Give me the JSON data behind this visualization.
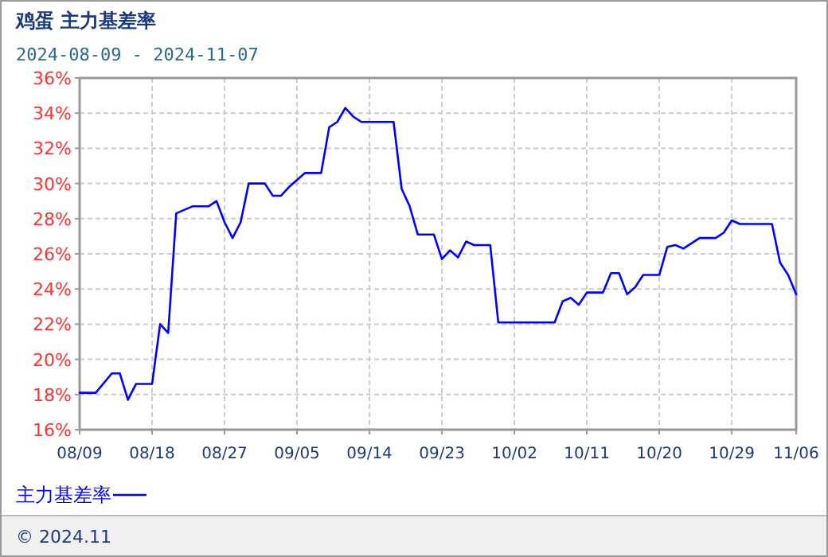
{
  "chart_data": {
    "type": "line",
    "title": "鸡蛋 主力基差率",
    "subtitle": "2024-08-09 - 2024-11-07",
    "x": [
      "--08-09",
      "--08-11",
      "--08-13",
      "--08-14",
      "--08-15",
      "--08-16",
      "--08-18",
      "--08-19",
      "--08-20",
      "--08-21",
      "--08-23",
      "--08-25",
      "--08-26",
      "--08-27",
      "--08-28",
      "--08-29",
      "--08-30",
      "--09-01",
      "--09-02",
      "--09-03",
      "--09-04",
      "--09-06",
      "--09-08",
      "--09-09",
      "--09-10",
      "--09-11",
      "--09-12",
      "--09-13",
      "--09-17",
      "--09-18",
      "--09-19",
      "--09-20",
      "--09-22",
      "--09-23",
      "--09-24",
      "--09-25",
      "--09-26",
      "--09-27",
      "--09-29",
      "--09-30",
      "--10-07",
      "--10-08",
      "--10-09",
      "--10-10",
      "--10-11",
      "--10-13",
      "--10-14",
      "--10-15",
      "--10-16",
      "--10-17",
      "--10-18",
      "--10-20",
      "--10-21",
      "--10-22",
      "--10-23",
      "--10-25",
      "--10-27",
      "--10-28",
      "--10-29",
      "--10-30",
      "--11-03",
      "--11-04",
      "--11-05",
      "--11-06"
    ],
    "series": [
      {
        "name": "主力基差率",
        "color": "#0000ff",
        "values": [
          18.1,
          18.1,
          19.2,
          19.2,
          17.7,
          18.6,
          18.6,
          22.0,
          21.5,
          28.3,
          28.7,
          28.7,
          29.0,
          27.8,
          26.9,
          27.8,
          30.0,
          30.0,
          29.3,
          29.3,
          29.8,
          30.6,
          30.6,
          33.2,
          33.5,
          34.3,
          33.8,
          33.5,
          33.5,
          29.7,
          28.7,
          27.1,
          27.1,
          25.7,
          26.2,
          25.8,
          26.7,
          26.5,
          26.5,
          22.1,
          22.1,
          23.3,
          23.5,
          23.1,
          23.8,
          23.8,
          24.9,
          24.9,
          23.7,
          24.1,
          24.8,
          24.8,
          26.4,
          26.5,
          26.3,
          26.9,
          26.9,
          27.2,
          27.9,
          27.7,
          27.7,
          25.5,
          24.8,
          23.7
        ]
      }
    ],
    "xlim": [
      "--08-09",
      "--11-06"
    ],
    "xticks": [
      {
        "value": "--08-09",
        "label": "08/09"
      },
      {
        "value": "--08-18",
        "label": "08/18"
      },
      {
        "value": "--08-27",
        "label": "08/27"
      },
      {
        "value": "--09-05",
        "label": "09/05"
      },
      {
        "value": "--09-14",
        "label": "09/14"
      },
      {
        "value": "--09-23",
        "label": "09/23"
      },
      {
        "value": "--10-02",
        "label": "10/02"
      },
      {
        "value": "--10-11",
        "label": "10/11"
      },
      {
        "value": "--10-20",
        "label": "10/20"
      },
      {
        "value": "--10-29",
        "label": "10/29"
      },
      {
        "value": "--11-06",
        "label": "11/06"
      }
    ],
    "ylim": [
      16,
      36
    ],
    "yticks": [
      {
        "value": 16,
        "label": "16%"
      },
      {
        "value": 18,
        "label": "18%"
      },
      {
        "value": 20,
        "label": "20%"
      },
      {
        "value": 22,
        "label": "22%"
      },
      {
        "value": 24,
        "label": "24%"
      },
      {
        "value": 26,
        "label": "26%"
      },
      {
        "value": 28,
        "label": "28%"
      },
      {
        "value": 30,
        "label": "30%"
      },
      {
        "value": 32,
        "label": "32%"
      },
      {
        "value": 34,
        "label": "34%"
      },
      {
        "value": 36,
        "label": "36%"
      }
    ],
    "grid": true,
    "legend": "bottom",
    "marker": "none",
    "line_style": "solid",
    "annotations": [
      "© 2024.11"
    ]
  }
}
